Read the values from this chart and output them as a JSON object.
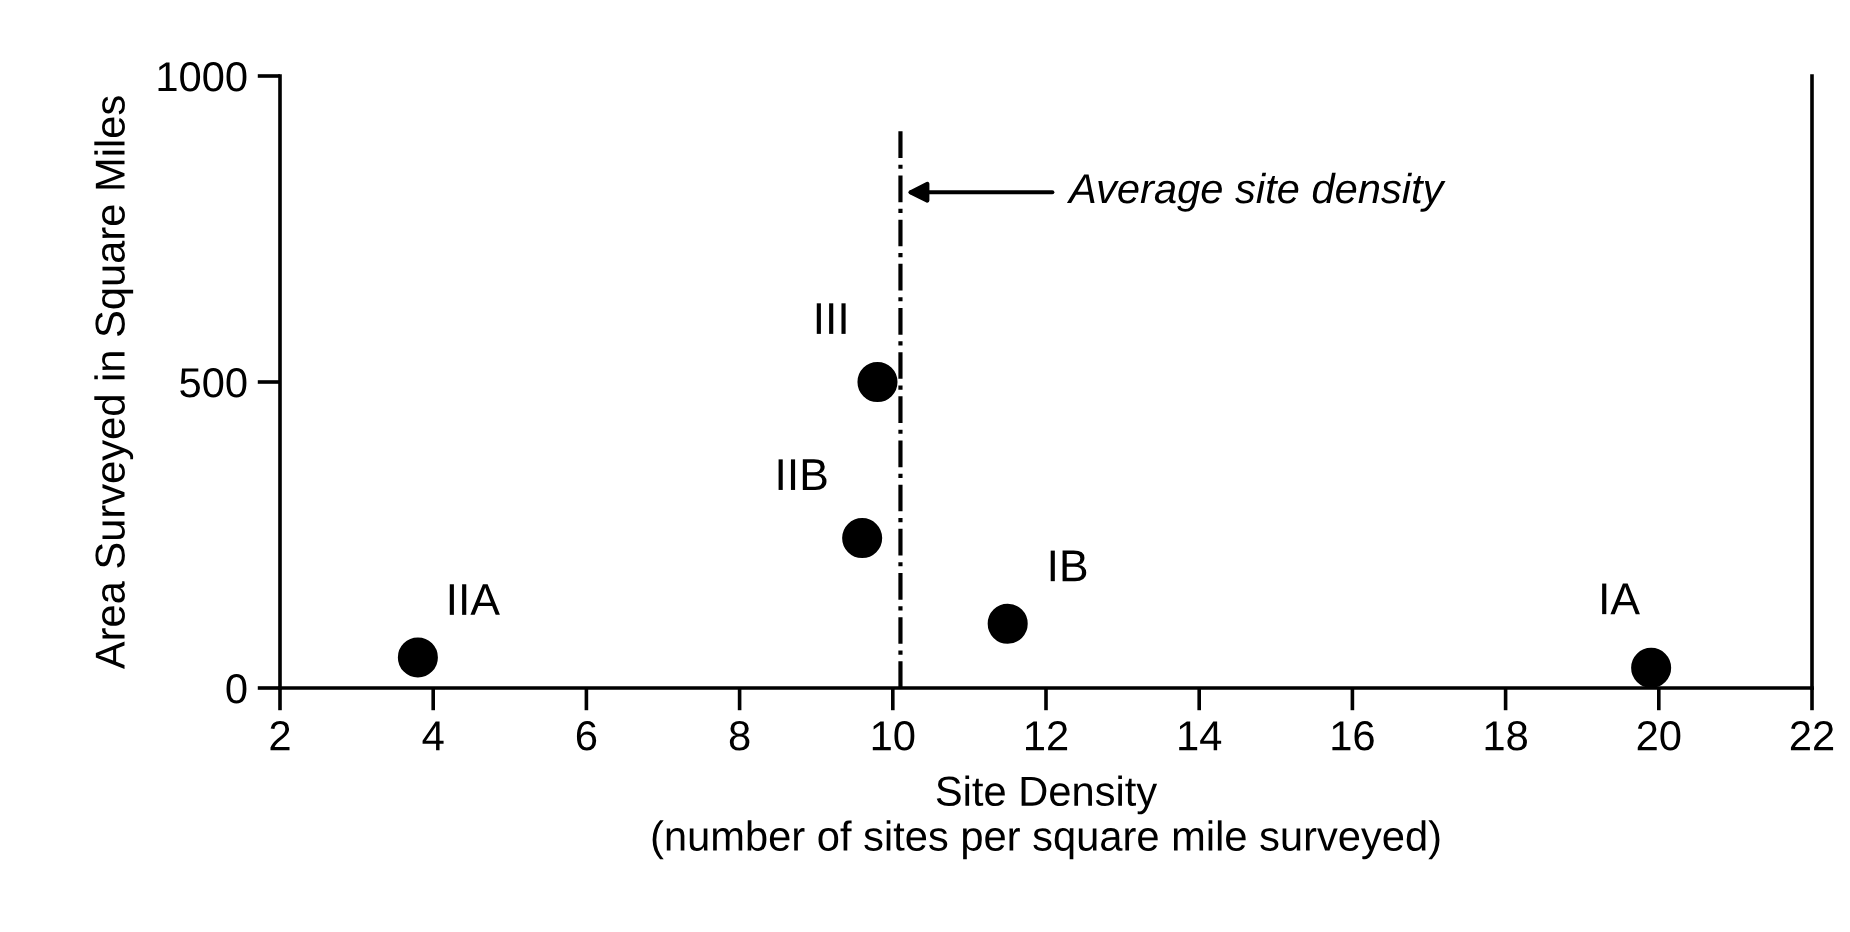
{
  "chart_data": {
    "type": "scatter",
    "xlabel": "Site Density\n(number of sites per square mile surveyed)",
    "ylabel": "Area Surveyed in Square Miles",
    "series": [
      {
        "color": "#000000",
        "x": [
          3.8,
          9.6,
          9.8,
          11.5,
          19.9
        ],
        "values": [
          50,
          245,
          500,
          105,
          33
        ]
      }
    ],
    "marker": "circle",
    "xlim": [
      2,
      22
    ],
    "xticks": [
      2,
      4,
      6,
      8,
      10,
      12,
      14,
      16,
      18,
      20,
      22
    ],
    "ylim": [
      0,
      1000
    ],
    "yticks": [
      0,
      500,
      1000
    ],
    "grid": false,
    "ref_lines": [
      {
        "axis": "x",
        "value": 10.1,
        "label": "Average site density",
        "line_style": "dashdot",
        "color": "#000000"
      }
    ],
    "annotations": [
      {
        "text": "IIA",
        "x": 3.8,
        "y": 50
      },
      {
        "text": "IIB",
        "x": 9.6,
        "y": 245
      },
      {
        "text": "III",
        "x": 9.8,
        "y": 500
      },
      {
        "text": "IB",
        "x": 11.5,
        "y": 105
      },
      {
        "text": "IA",
        "x": 19.9,
        "y": 33
      }
    ]
  }
}
